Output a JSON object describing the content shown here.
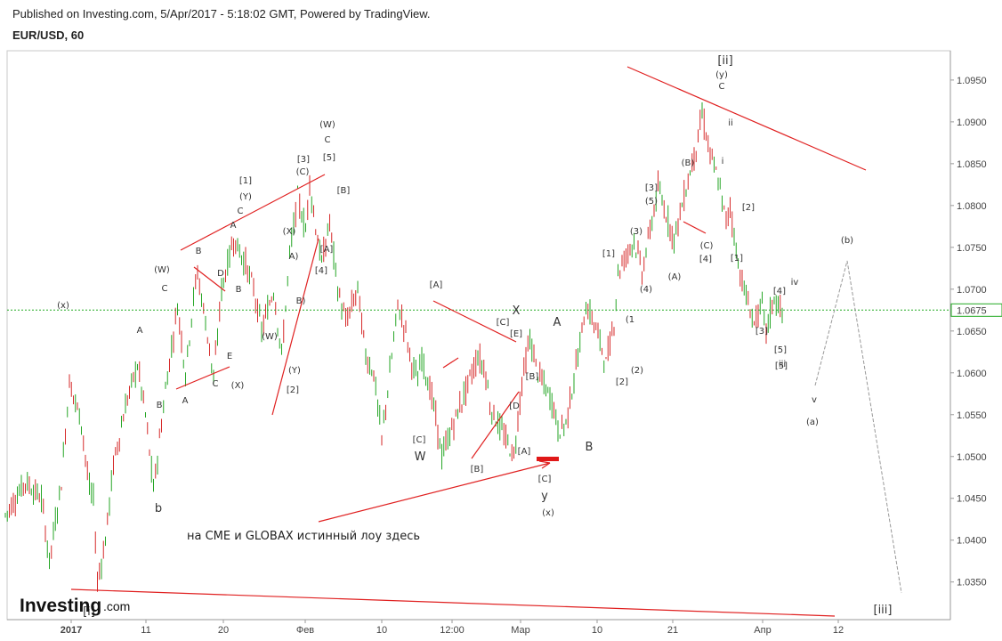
{
  "header": {
    "published": "Published on Investing.com, 5/Apr/2017 - 5:18:02 GMT, Powered by TradingView.",
    "symbol": "EUR/USD, 60"
  },
  "logo": {
    "brand": "Investing",
    "suffix": ".com"
  },
  "chart_data": {
    "type": "candlestick",
    "symbol": "EUR/USD",
    "timeframe": "60",
    "x_ticks": [
      "2017",
      "11",
      "20",
      "Фев",
      "10",
      "12:00",
      "Мар",
      "10",
      "21",
      "Апр",
      "12"
    ],
    "y_ticks": [
      "1.0950",
      "1.0900",
      "1.0850",
      "1.0800",
      "1.0750",
      "1.0700",
      "1.0650",
      "1.0600",
      "1.0550",
      "1.0500",
      "1.0450",
      "1.0400",
      "1.0350"
    ],
    "ylim": [
      1.0305,
      1.0985
    ],
    "current_price": "1.0675",
    "price_path": [
      [
        0,
        1.043
      ],
      [
        5,
        1.047
      ],
      [
        9,
        1.045
      ],
      [
        11,
        1.0375
      ],
      [
        14,
        1.047
      ],
      [
        16,
        1.059
      ],
      [
        19,
        1.054
      ],
      [
        21,
        1.046
      ],
      [
        22,
        1.045
      ],
      [
        23,
        1.035
      ],
      [
        25,
        1.04
      ],
      [
        27,
        1.049
      ],
      [
        30,
        1.056
      ],
      [
        33,
        1.061
      ],
      [
        35,
        1.055
      ],
      [
        37,
        1.046
      ],
      [
        40,
        1.058
      ],
      [
        43,
        1.068
      ],
      [
        45,
        1.06
      ],
      [
        47,
        1.069
      ],
      [
        48,
        1.072
      ],
      [
        51,
        1.063
      ],
      [
        52,
        1.059
      ],
      [
        54,
        1.07
      ],
      [
        57,
        1.076
      ],
      [
        60,
        1.073
      ],
      [
        62,
        1.07
      ],
      [
        64,
        1.065
      ],
      [
        67,
        1.07
      ],
      [
        69,
        1.062
      ],
      [
        71,
        1.074
      ],
      [
        73,
        1.081
      ],
      [
        75,
        1.077
      ],
      [
        76,
        1.083
      ],
      [
        77,
        1.079
      ],
      [
        79,
        1.073
      ],
      [
        81,
        1.078
      ],
      [
        83,
        1.07
      ],
      [
        85,
        1.066
      ],
      [
        88,
        1.07
      ],
      [
        90,
        1.062
      ],
      [
        92,
        1.06
      ],
      [
        94,
        1.052
      ],
      [
        96,
        1.06
      ],
      [
        98,
        1.068
      ],
      [
        100,
        1.065
      ],
      [
        101,
        1.062
      ],
      [
        103,
        1.059
      ],
      [
        104,
        1.062
      ],
      [
        105,
        1.06
      ],
      [
        107,
        1.056
      ],
      [
        109,
        1.05
      ],
      [
        112,
        1.054
      ],
      [
        115,
        1.058
      ],
      [
        118,
        1.062
      ],
      [
        120,
        1.06
      ],
      [
        121,
        1.056
      ],
      [
        123,
        1.054
      ],
      [
        125,
        1.052
      ],
      [
        127,
        1.05
      ],
      [
        129,
        1.059
      ],
      [
        131,
        1.064
      ],
      [
        133,
        1.06
      ],
      [
        135,
        1.058
      ],
      [
        137,
        1.056
      ],
      [
        138,
        1.053
      ],
      [
        140,
        1.054
      ],
      [
        143,
        1.062
      ],
      [
        145,
        1.068
      ],
      [
        147,
        1.066
      ],
      [
        149,
        1.063
      ],
      [
        150,
        1.061
      ],
      [
        152,
        1.066
      ],
      [
        153,
        1.072
      ],
      [
        155,
        1.074
      ],
      [
        157,
        1.076
      ],
      [
        159,
        1.072
      ],
      [
        161,
        1.077
      ],
      [
        163,
        1.082
      ],
      [
        165,
        1.079
      ],
      [
        167,
        1.076
      ],
      [
        169,
        1.08
      ],
      [
        171,
        1.084
      ],
      [
        173,
        1.088
      ],
      [
        174,
        1.091
      ],
      [
        176,
        1.086
      ],
      [
        178,
        1.083
      ],
      [
        180,
        1.078
      ],
      [
        181,
        1.08
      ],
      [
        183,
        1.073
      ],
      [
        185,
        1.069
      ],
      [
        187,
        1.066
      ],
      [
        189,
        1.068
      ],
      [
        190,
        1.065
      ],
      [
        192,
        1.069
      ],
      [
        194,
        1.067
      ]
    ],
    "horizontal_line": {
      "price": 1.0675,
      "color": "#22aa22",
      "style": "dotted"
    },
    "trendlines_color": "#e02020",
    "projection_color": "#999999",
    "annotations": [
      "(x)",
      "b",
      "A",
      "B",
      "C",
      "(W)",
      "B",
      "D",
      "A",
      "C",
      "E",
      "(X)",
      "B",
      "A",
      "C",
      "(Y)",
      "[1]",
      "(X)",
      "(W)",
      "A)",
      "B)",
      "(Y)",
      "[2]",
      "[3]",
      "(C)",
      "[5]",
      "C",
      "(W)",
      "[A]",
      "[4]",
      "[B]",
      "[A]",
      "[C]",
      "W",
      "[B]",
      "[C]",
      "[E]",
      "X",
      "[D",
      "[B]",
      "[A]",
      "[C]",
      "y",
      "(x)",
      "A",
      "B",
      "[1]",
      "(3)",
      "(1",
      "(2)",
      "[2]",
      "(4)",
      "[3]",
      "(5)",
      "(A)",
      "(B)",
      "(C)",
      "[4]",
      "[5]",
      "C",
      "(y)",
      "[ii]",
      "ii",
      "i",
      "[2]",
      "[1]",
      "[4]",
      "iv",
      "[3]",
      "[5]",
      "iii",
      "(b)",
      "v",
      "(a)",
      "[iii]",
      "[i]"
    ],
    "note_text": "на CME и GLOBAX истинный лоу здесь"
  }
}
